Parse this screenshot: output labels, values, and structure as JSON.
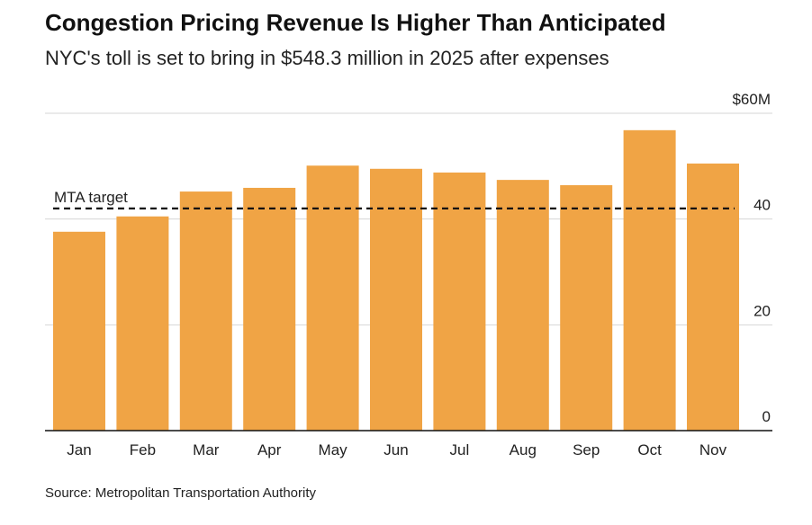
{
  "chart_data": {
    "type": "bar",
    "title": "Congestion Pricing Revenue Is Higher Than Anticipated",
    "subtitle": "NYC's toll is set to bring in $548.3 million in 2025 after expenses",
    "source": "Source: Metropolitan Transportation Authority",
    "categories": [
      "Jan",
      "Feb",
      "Mar",
      "Apr",
      "May",
      "Jun",
      "Jul",
      "Aug",
      "Sep",
      "Oct",
      "Nov"
    ],
    "values": [
      37.6,
      40.5,
      45.2,
      45.9,
      50.1,
      49.5,
      48.8,
      47.4,
      46.4,
      56.8,
      50.5
    ],
    "color": "#f0a445",
    "ylim": [
      0,
      60
    ],
    "yticks": [
      0,
      20,
      40,
      {
        "value": 60,
        "label": "$60M"
      }
    ],
    "grid": true,
    "target": {
      "value": 42,
      "label": "MTA target"
    }
  }
}
